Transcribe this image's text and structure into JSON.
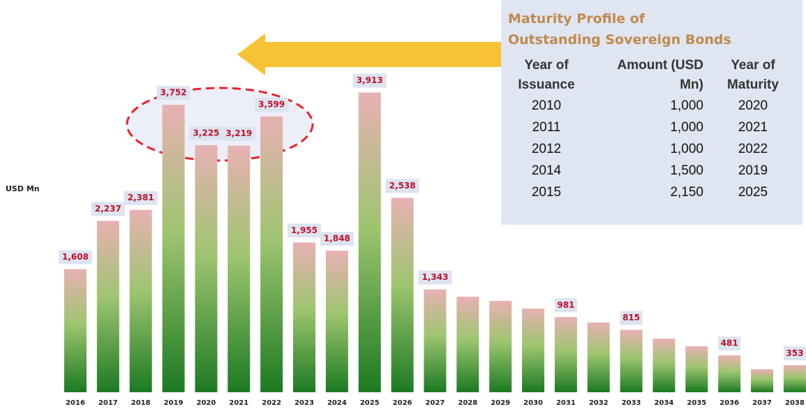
{
  "chart_data": {
    "type": "bar",
    "ylabel": "USD Mn",
    "categories": [
      "2016",
      "2017",
      "2018",
      "2019",
      "2020",
      "2021",
      "2022",
      "2023",
      "2024",
      "2025",
      "2026",
      "2027",
      "2028",
      "2029",
      "2030",
      "2031",
      "2032",
      "2033",
      "2034",
      "2035",
      "2036",
      "2037",
      "2038"
    ],
    "values": [
      1608,
      2237,
      2381,
      3752,
      3225,
      3219,
      3599,
      1955,
      1848,
      3913,
      2538,
      1343,
      1247,
      1192,
      1092,
      981,
      910,
      815,
      700,
      600,
      481,
      300,
      353
    ],
    "value_labels": [
      "1,608",
      "2,237",
      "2,381",
      "3,752",
      "3,225",
      "3,219",
      "3,599",
      "1,955",
      "1,848",
      "3,913",
      "2,538",
      "1,343",
      null,
      null,
      null,
      "981",
      null,
      "815",
      null,
      null,
      "481",
      null,
      "353"
    ],
    "ylim": [
      0,
      4000
    ]
  },
  "table": {
    "title": "Maturity Profile of Outstanding Sovereign Bonds",
    "headers": [
      "Year of Issuance",
      "Amount (USD Mn)",
      "Year of Maturity"
    ],
    "rows": [
      [
        "2010",
        "1,000",
        "2020"
      ],
      [
        "2011",
        "1,000",
        "2021"
      ],
      [
        "2012",
        "1,000",
        "2022"
      ],
      [
        "2014",
        "1,500",
        "2019"
      ],
      [
        "2015",
        "2,150",
        "2025"
      ]
    ]
  }
}
